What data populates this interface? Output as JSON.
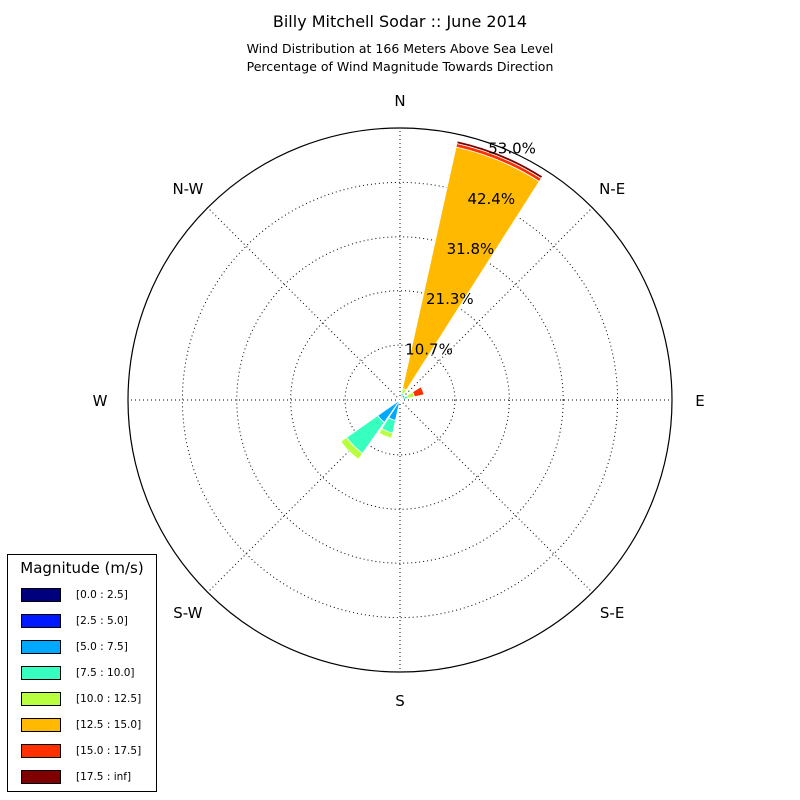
{
  "title": "Billy Mitchell Sodar :: June 2014",
  "subtitle_lines": [
    "Wind Distribution at 166 Meters Above Sea Level",
    "Percentage of Wind Magnitude Towards Direction"
  ],
  "legend": {
    "title": "Magnitude (m/s)",
    "items": [
      {
        "label": "[0.0 : 2.5]",
        "color": "#00007f"
      },
      {
        "label": "[2.5 : 5.0]",
        "color": "#0019ff"
      },
      {
        "label": "[5.0 : 7.5]",
        "color": "#00a9ff"
      },
      {
        "label": "[7.5 : 10.0]",
        "color": "#36ffc0"
      },
      {
        "label": "[10.0 : 12.5]",
        "color": "#b8ff3f"
      },
      {
        "label": "[12.5 : 15.0]",
        "color": "#ffb900"
      },
      {
        "label": "[15.0 : 17.5]",
        "color": "#ff3000"
      },
      {
        "label": "[17.5 : inf]",
        "color": "#7f0000"
      }
    ]
  },
  "chart_data": {
    "type": "windrose",
    "directions": [
      "N",
      "N-E",
      "E",
      "S-E",
      "S",
      "S-W",
      "W",
      "N-W"
    ],
    "radial_tick_labels": [
      "10.7%",
      "21.3%",
      "31.8%",
      "42.4%",
      "53.0%"
    ],
    "radial_ticks": [
      10.7,
      21.3,
      31.8,
      42.4,
      53.0
    ],
    "rmax": 53.0,
    "grid": true,
    "legend_position": "bottom-left",
    "bin_labels": [
      "[0.0 : 2.5]",
      "[2.5 : 5.0]",
      "[5.0 : 7.5]",
      "[7.5 : 10.0]",
      "[10.0 : 12.5]",
      "[12.5 : 15.0]",
      "[15.0 : 17.5]",
      "[17.5 : inf]"
    ],
    "sectors": [
      {
        "direction_deg": 22.5,
        "cumulative_percent": [
          0.1,
          0.3,
          0.8,
          1.4,
          2.3,
          50.5,
          51.2,
          51.7
        ]
      },
      {
        "direction_deg": 67.5,
        "cumulative_percent": [
          0.1,
          0.2,
          0.6,
          1.6,
          2.9,
          2.9,
          4.8,
          4.8
        ]
      },
      {
        "direction_deg": 202.5,
        "cumulative_percent": [
          0.1,
          0.3,
          4.1,
          6.6,
          7.6,
          7.6,
          7.6,
          7.6
        ]
      },
      {
        "direction_deg": 225.0,
        "cumulative_percent": [
          0.1,
          0.3,
          5.3,
          12.7,
          14.1,
          14.1,
          14.1,
          14.1
        ]
      }
    ]
  }
}
